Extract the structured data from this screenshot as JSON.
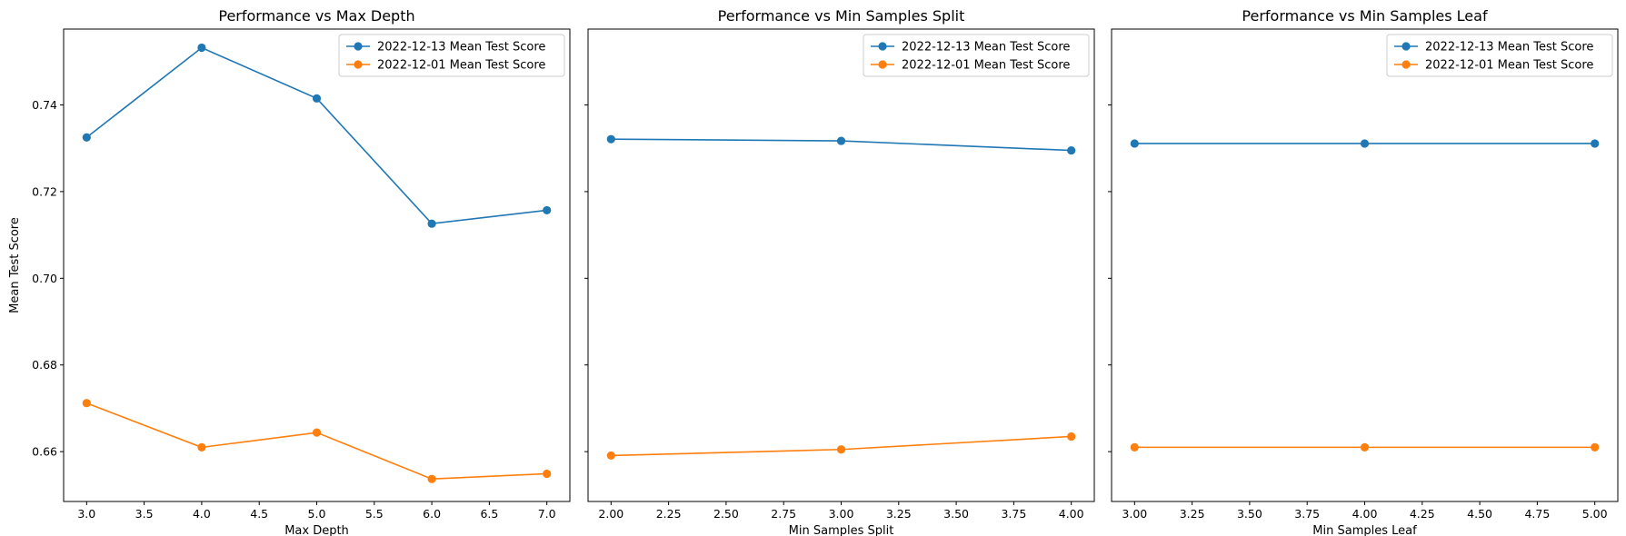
{
  "chart_data": [
    {
      "type": "line",
      "title": "Performance vs Max Depth",
      "xlabel": "Max Depth",
      "ylabel": "Mean Test Score",
      "x": [
        3,
        4,
        5,
        6,
        7
      ],
      "xlim": [
        2.8,
        7.2
      ],
      "xticks": [
        3.0,
        3.5,
        4.0,
        4.5,
        5.0,
        5.5,
        6.0,
        6.5,
        7.0
      ],
      "xtick_labels": [
        "3.0",
        "3.5",
        "4.0",
        "4.5",
        "5.0",
        "5.5",
        "6.0",
        "6.5",
        "7.0"
      ],
      "ylim": [
        0.6485,
        0.7575
      ],
      "yticks": [
        0.66,
        0.68,
        0.7,
        0.72,
        0.74
      ],
      "ytick_labels": [
        "0.66",
        "0.68",
        "0.70",
        "0.72",
        "0.74"
      ],
      "show_yticklabels": true,
      "legend": "top-right",
      "grid": false,
      "series": [
        {
          "name": "2022-12-13 Mean Test Score",
          "color": "#1f77b4",
          "values": [
            0.7325,
            0.7532,
            0.7415,
            0.7126,
            0.7157
          ]
        },
        {
          "name": "2022-12-01 Mean Test Score",
          "color": "#ff7f0e",
          "values": [
            0.6712,
            0.661,
            0.6644,
            0.6537,
            0.6549
          ]
        }
      ]
    },
    {
      "type": "line",
      "title": "Performance vs Min Samples Split",
      "xlabel": "Min Samples Split",
      "ylabel": "",
      "x": [
        2,
        3,
        4
      ],
      "xlim": [
        1.9,
        4.1
      ],
      "xticks": [
        2.0,
        2.25,
        2.5,
        2.75,
        3.0,
        3.25,
        3.5,
        3.75,
        4.0
      ],
      "xtick_labels": [
        "2.00",
        "2.25",
        "2.50",
        "2.75",
        "3.00",
        "3.25",
        "3.50",
        "3.75",
        "4.00"
      ],
      "ylim": [
        0.6485,
        0.7575
      ],
      "yticks": [
        0.66,
        0.68,
        0.7,
        0.72,
        0.74
      ],
      "ytick_labels": [
        "0.66",
        "0.68",
        "0.70",
        "0.72",
        "0.74"
      ],
      "show_yticklabels": false,
      "legend": "top-right",
      "grid": false,
      "series": [
        {
          "name": "2022-12-13 Mean Test Score",
          "color": "#1f77b4",
          "values": [
            0.7321,
            0.7317,
            0.7295
          ]
        },
        {
          "name": "2022-12-01 Mean Test Score",
          "color": "#ff7f0e",
          "values": [
            0.6591,
            0.6605,
            0.6635
          ]
        }
      ]
    },
    {
      "type": "line",
      "title": "Performance vs Min Samples Leaf",
      "xlabel": "Min Samples Leaf",
      "ylabel": "",
      "x": [
        3,
        4,
        5
      ],
      "xlim": [
        2.9,
        5.1
      ],
      "xticks": [
        3.0,
        3.25,
        3.5,
        3.75,
        4.0,
        4.25,
        4.5,
        4.75,
        5.0
      ],
      "xtick_labels": [
        "3.00",
        "3.25",
        "3.50",
        "3.75",
        "4.00",
        "4.25",
        "4.50",
        "4.75",
        "5.00"
      ],
      "ylim": [
        0.6485,
        0.7575
      ],
      "yticks": [
        0.66,
        0.68,
        0.7,
        0.72,
        0.74
      ],
      "ytick_labels": [
        "0.66",
        "0.68",
        "0.70",
        "0.72",
        "0.74"
      ],
      "show_yticklabels": false,
      "legend": "top-right",
      "grid": false,
      "series": [
        {
          "name": "2022-12-13 Mean Test Score",
          "color": "#1f77b4",
          "values": [
            0.7311,
            0.7311,
            0.7311
          ]
        },
        {
          "name": "2022-12-01 Mean Test Score",
          "color": "#ff7f0e",
          "values": [
            0.661,
            0.661,
            0.661
          ]
        }
      ]
    }
  ]
}
